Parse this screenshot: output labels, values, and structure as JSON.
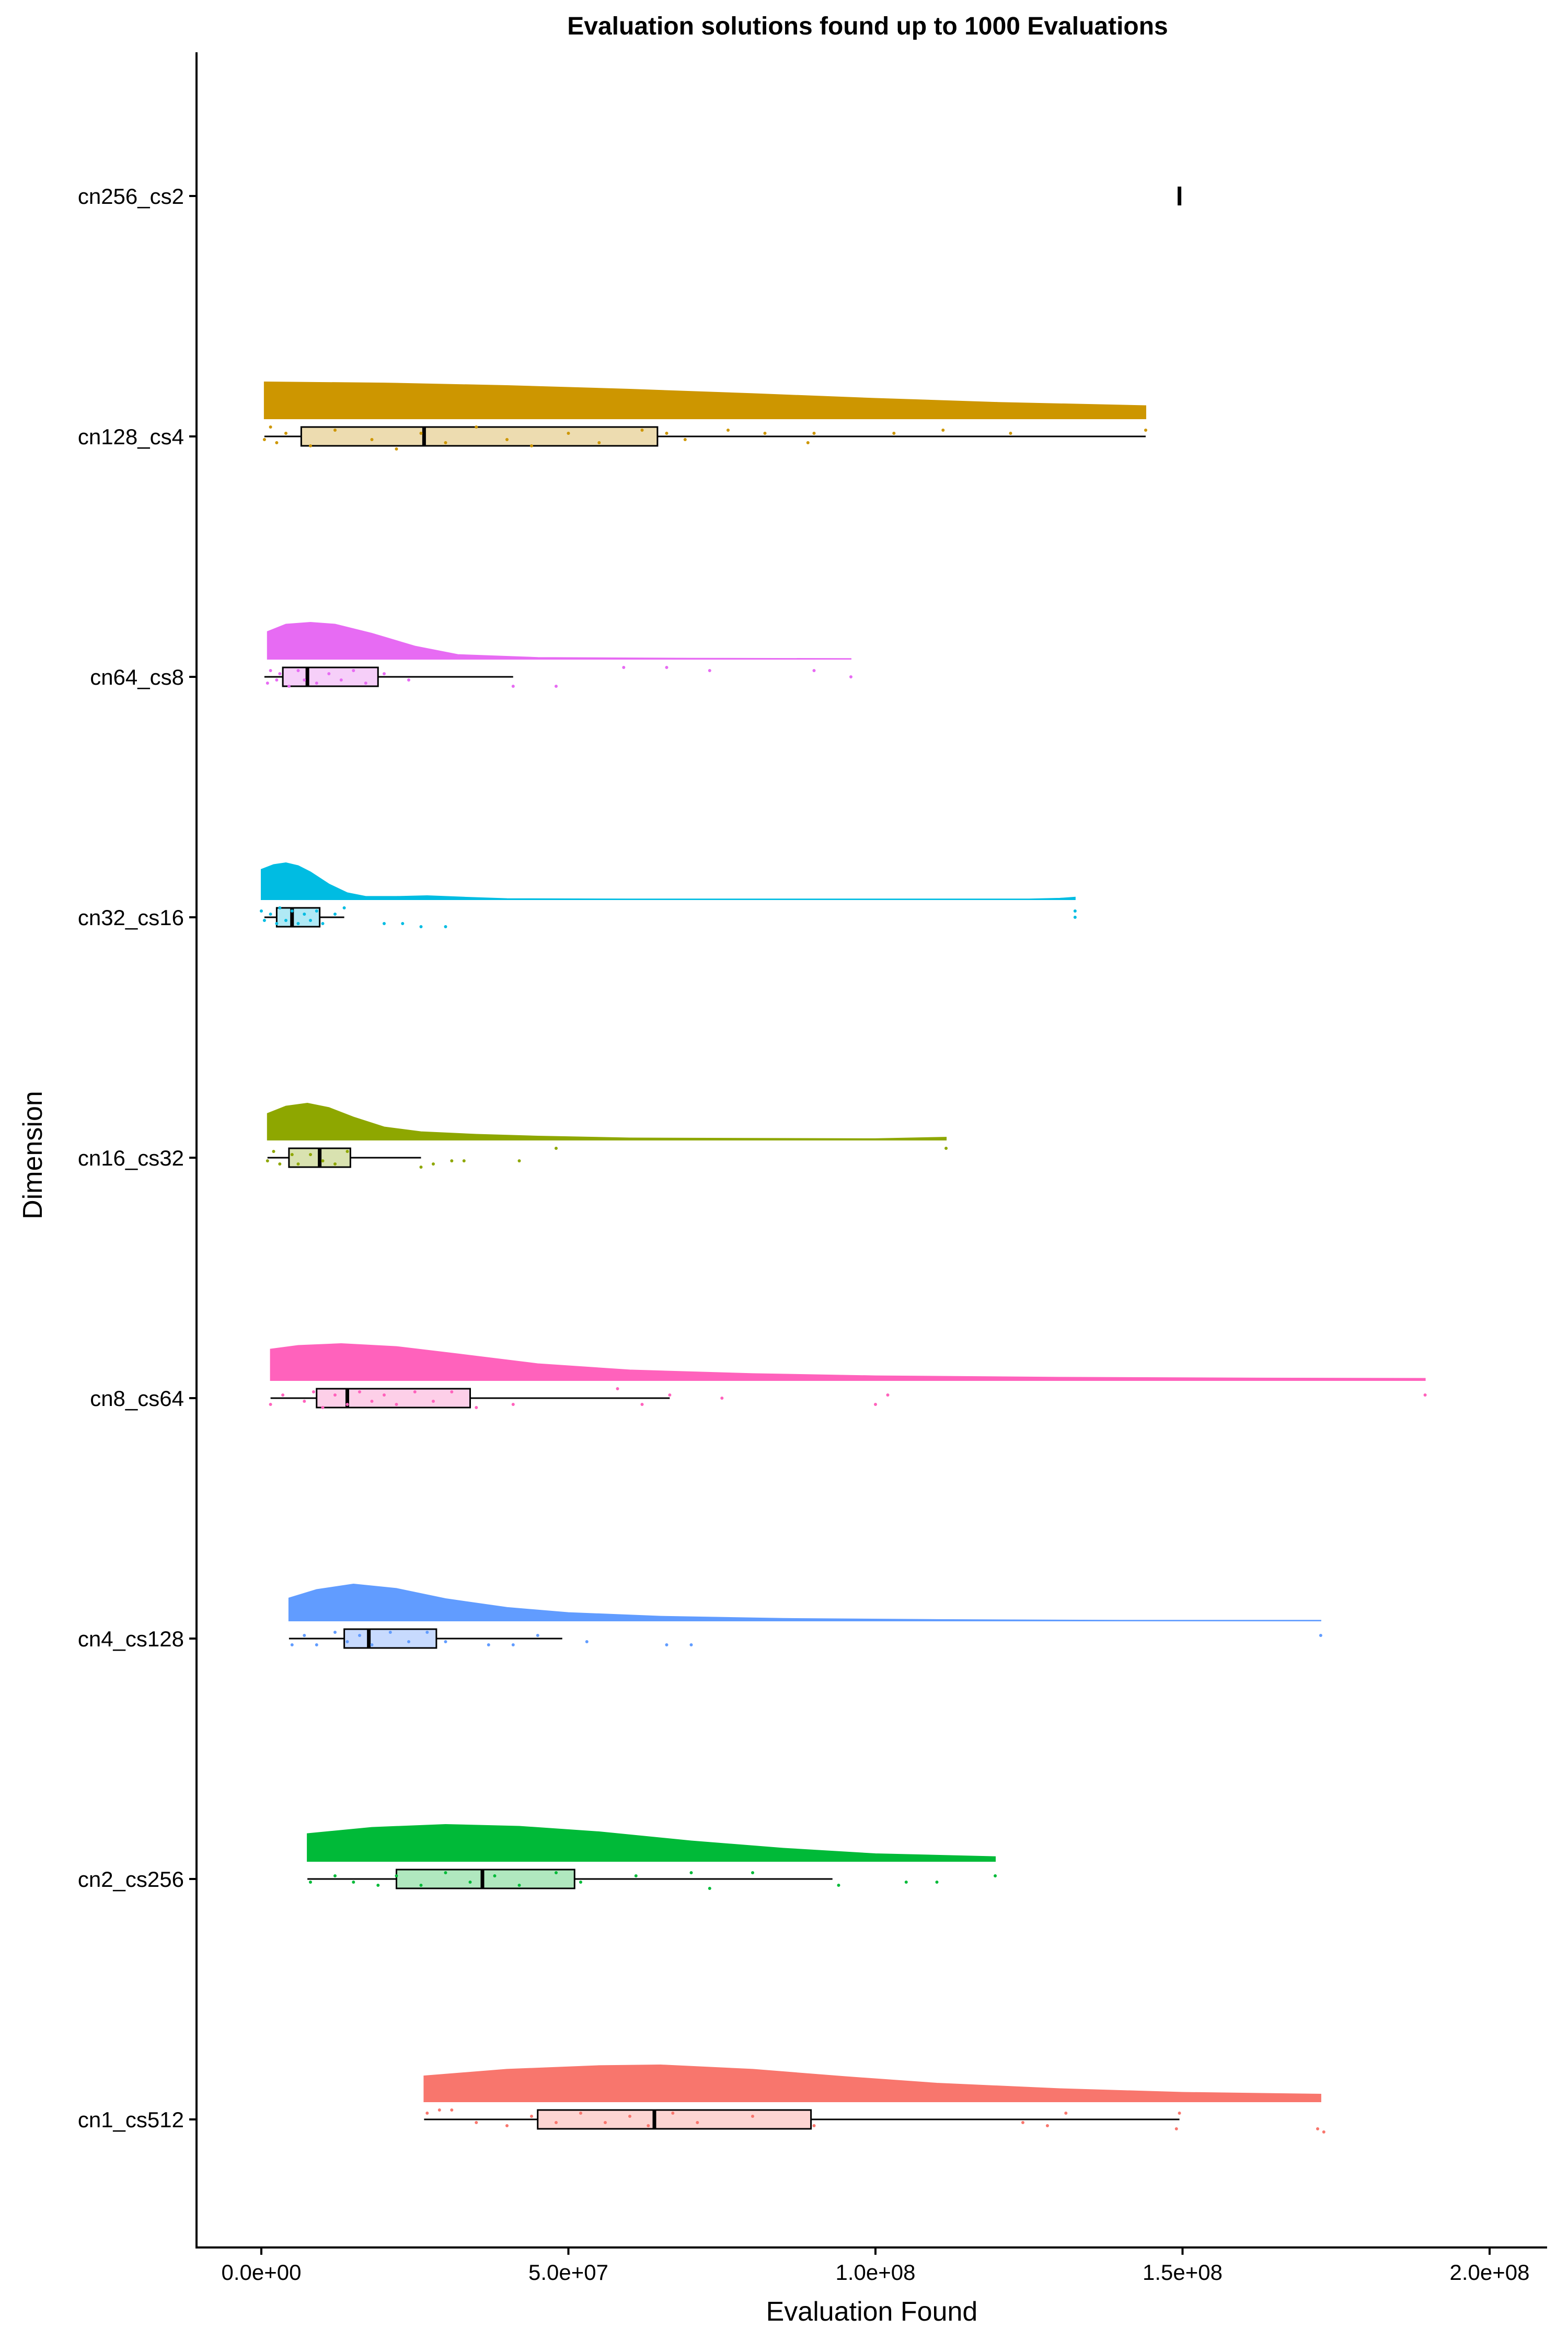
{
  "chart_data": {
    "type": "raincloud",
    "title": "Evaluation solutions found up to 1000 Evaluations",
    "xlabel": "Evaluation Found",
    "ylabel": "Dimension",
    "xlim": [
      -10500000,
      200000000
    ],
    "x_ticks": [
      {
        "value": 0,
        "label": "0.0e+00"
      },
      {
        "value": 50000000,
        "label": "5.0e+07"
      },
      {
        "value": 100000000,
        "label": "1.0e+08"
      },
      {
        "value": 150000000,
        "label": "1.5e+08"
      },
      {
        "value": 200000000,
        "label": "2.0e+08"
      }
    ],
    "grid": false,
    "legend": "none",
    "series": [
      {
        "name": "cn256_cs2",
        "color": "#000000",
        "fill": "#000000",
        "box": {
          "min": 149500000,
          "q1": 149500000,
          "median": 149500000,
          "q3": 149500000,
          "max": 149500000
        },
        "density": [],
        "points": []
      },
      {
        "name": "cn128_cs4",
        "color": "#CD9600",
        "fill": "#EDDCB0",
        "box": {
          "min": 500000,
          "q1": 6500000,
          "median": 26500000,
          "q3": 64500000,
          "max": 144000000
        },
        "density": [
          [
            500000,
            1.0
          ],
          [
            20000000,
            0.97
          ],
          [
            40000000,
            0.9
          ],
          [
            60000000,
            0.8
          ],
          [
            80000000,
            0.68
          ],
          [
            100000000,
            0.55
          ],
          [
            120000000,
            0.44
          ],
          [
            144000000,
            0.35
          ]
        ],
        "points": [
          [
            500000,
            1
          ],
          [
            1500000,
            -3
          ],
          [
            2500000,
            2
          ],
          [
            4000000,
            -1
          ],
          [
            8000000,
            3
          ],
          [
            12000000,
            -2
          ],
          [
            18000000,
            1
          ],
          [
            22000000,
            4
          ],
          [
            26000000,
            -1
          ],
          [
            30000000,
            2
          ],
          [
            35000000,
            -3
          ],
          [
            40000000,
            1
          ],
          [
            44000000,
            3
          ],
          [
            50000000,
            -1
          ],
          [
            55000000,
            2
          ],
          [
            62000000,
            -2
          ],
          [
            66000000,
            -1
          ],
          [
            69000000,
            1
          ],
          [
            76000000,
            -2
          ],
          [
            82000000,
            -1
          ],
          [
            89000000,
            2
          ],
          [
            90000000,
            -1
          ],
          [
            103000000,
            -1
          ],
          [
            111000000,
            -2
          ],
          [
            122000000,
            -1
          ],
          [
            144000000,
            -2
          ]
        ]
      },
      {
        "name": "cn64_cs8",
        "color": "#E76BF3",
        "fill": "#F6CFF9",
        "box": {
          "min": 500000,
          "q1": 3500000,
          "median": 7500000,
          "q3": 19000000,
          "max": 41000000
        },
        "density": [
          [
            1000000,
            0.75
          ],
          [
            4000000,
            0.95
          ],
          [
            8000000,
            1.0
          ],
          [
            12000000,
            0.95
          ],
          [
            18000000,
            0.7
          ],
          [
            25000000,
            0.35
          ],
          [
            32000000,
            0.12
          ],
          [
            45000000,
            0.04
          ],
          [
            70000000,
            0.02
          ],
          [
            96000000,
            0.01
          ]
        ],
        "points": [
          [
            1000000,
            2
          ],
          [
            1500000,
            -2
          ],
          [
            2500000,
            1
          ],
          [
            3000000,
            -1
          ],
          [
            4500000,
            3
          ],
          [
            6000000,
            -2
          ],
          [
            7000000,
            1
          ],
          [
            9000000,
            2
          ],
          [
            11000000,
            -1
          ],
          [
            13000000,
            1
          ],
          [
            15000000,
            -2
          ],
          [
            17000000,
            2
          ],
          [
            20000000,
            -1
          ],
          [
            24000000,
            1
          ],
          [
            41000000,
            3
          ],
          [
            48000000,
            3
          ],
          [
            59000000,
            -3
          ],
          [
            66000000,
            -3
          ],
          [
            73000000,
            -2
          ],
          [
            90000000,
            -2
          ],
          [
            96000000,
            0
          ]
        ]
      },
      {
        "name": "cn32_cs16",
        "color": "#00BCE2",
        "fill": "#B0E9F5",
        "box": {
          "min": 500000,
          "q1": 2500000,
          "median": 5000000,
          "q3": 9500000,
          "max": 13500000
        },
        "density": [
          [
            0,
            0.82
          ],
          [
            2000000,
            0.95
          ],
          [
            4000000,
            1.0
          ],
          [
            6000000,
            0.92
          ],
          [
            8000000,
            0.75
          ],
          [
            11000000,
            0.42
          ],
          [
            14000000,
            0.18
          ],
          [
            17000000,
            0.08
          ],
          [
            22000000,
            0.08
          ],
          [
            27000000,
            0.1
          ],
          [
            33000000,
            0.06
          ],
          [
            40000000,
            0.02
          ],
          [
            60000000,
            0.01
          ],
          [
            100000000,
            0.01
          ],
          [
            125000000,
            0.01
          ],
          [
            130000000,
            0.03
          ],
          [
            132500000,
            0.06
          ]
        ],
        "points": [
          [
            0,
            -2
          ],
          [
            500000,
            1
          ],
          [
            1500000,
            -1
          ],
          [
            2500000,
            2
          ],
          [
            3000000,
            -3
          ],
          [
            4000000,
            1
          ],
          [
            5000000,
            -2
          ],
          [
            6000000,
            2
          ],
          [
            7000000,
            -1
          ],
          [
            8000000,
            1
          ],
          [
            9000000,
            -2
          ],
          [
            10000000,
            2
          ],
          [
            12000000,
            -1
          ],
          [
            13500000,
            -3
          ],
          [
            20000000,
            2
          ],
          [
            23000000,
            2
          ],
          [
            26000000,
            3
          ],
          [
            30000000,
            3
          ],
          [
            132500000,
            0
          ],
          [
            132500000,
            -2
          ]
        ]
      },
      {
        "name": "cn16_cs32",
        "color": "#8EA700",
        "fill": "#D9E2B0",
        "box": {
          "min": 1000000,
          "q1": 4500000,
          "median": 9500000,
          "q3": 14500000,
          "max": 26000000
        },
        "density": [
          [
            1000000,
            0.72
          ],
          [
            4000000,
            0.92
          ],
          [
            7500000,
            1.0
          ],
          [
            11000000,
            0.88
          ],
          [
            15000000,
            0.62
          ],
          [
            20000000,
            0.35
          ],
          [
            26000000,
            0.22
          ],
          [
            35000000,
            0.15
          ],
          [
            45000000,
            0.1
          ],
          [
            60000000,
            0.05
          ],
          [
            80000000,
            0.04
          ],
          [
            100000000,
            0.03
          ],
          [
            111500000,
            0.07
          ]
        ],
        "points": [
          [
            1000000,
            1
          ],
          [
            2000000,
            -2
          ],
          [
            3000000,
            2
          ],
          [
            5000000,
            -1
          ],
          [
            6000000,
            2
          ],
          [
            8000000,
            -1
          ],
          [
            10000000,
            1
          ],
          [
            12000000,
            2
          ],
          [
            14000000,
            -2
          ],
          [
            26000000,
            3
          ],
          [
            28000000,
            2
          ],
          [
            31000000,
            1
          ],
          [
            33000000,
            1
          ],
          [
            42000000,
            1
          ],
          [
            48000000,
            -3
          ],
          [
            111500000,
            -3
          ]
        ]
      },
      {
        "name": "cn8_cs64",
        "color": "#FF62BC",
        "fill": "#FDCFE8",
        "box": {
          "min": 1500000,
          "q1": 9000000,
          "median": 14000000,
          "q3": 34000000,
          "max": 66500000
        },
        "density": [
          [
            1500000,
            0.85
          ],
          [
            6000000,
            0.95
          ],
          [
            13000000,
            1.0
          ],
          [
            22000000,
            0.92
          ],
          [
            32000000,
            0.72
          ],
          [
            45000000,
            0.45
          ],
          [
            60000000,
            0.28
          ],
          [
            80000000,
            0.18
          ],
          [
            100000000,
            0.12
          ],
          [
            130000000,
            0.08
          ],
          [
            160000000,
            0.06
          ],
          [
            189500000,
            0.05
          ]
        ],
        "points": [
          [
            1500000,
            2
          ],
          [
            3500000,
            -1
          ],
          [
            7000000,
            1
          ],
          [
            8500000,
            -2
          ],
          [
            10000000,
            3
          ],
          [
            12000000,
            -1
          ],
          [
            14000000,
            2
          ],
          [
            16000000,
            -2
          ],
          [
            18000000,
            1
          ],
          [
            20000000,
            -1
          ],
          [
            22000000,
            2
          ],
          [
            25000000,
            -2
          ],
          [
            28000000,
            1
          ],
          [
            31000000,
            -2
          ],
          [
            35000000,
            3
          ],
          [
            41000000,
            2
          ],
          [
            58000000,
            -3
          ],
          [
            62000000,
            2
          ],
          [
            66500000,
            -1
          ],
          [
            75000000,
            0
          ],
          [
            100000000,
            2
          ],
          [
            102000000,
            -1
          ],
          [
            189500000,
            -1
          ]
        ]
      },
      {
        "name": "cn4_cs128",
        "color": "#619CFF",
        "fill": "#C7DAFE",
        "box": {
          "min": 4500000,
          "q1": 13500000,
          "median": 17500000,
          "q3": 28500000,
          "max": 49000000
        },
        "density": [
          [
            4500000,
            0.62
          ],
          [
            9000000,
            0.85
          ],
          [
            15000000,
            1.0
          ],
          [
            22000000,
            0.88
          ],
          [
            30000000,
            0.6
          ],
          [
            40000000,
            0.36
          ],
          [
            50000000,
            0.22
          ],
          [
            65000000,
            0.12
          ],
          [
            85000000,
            0.06
          ],
          [
            110000000,
            0.03
          ],
          [
            140000000,
            0.01
          ],
          [
            172500000,
            0.01
          ]
        ],
        "points": [
          [
            5000000,
            2
          ],
          [
            7000000,
            -1
          ],
          [
            9000000,
            2
          ],
          [
            12000000,
            -2
          ],
          [
            14000000,
            1
          ],
          [
            16000000,
            -1
          ],
          [
            18000000,
            2
          ],
          [
            21000000,
            -2
          ],
          [
            24000000,
            1
          ],
          [
            27000000,
            -2
          ],
          [
            30000000,
            1
          ],
          [
            37000000,
            2
          ],
          [
            41000000,
            2
          ],
          [
            45000000,
            -1
          ],
          [
            53000000,
            1
          ],
          [
            66000000,
            2
          ],
          [
            70000000,
            2
          ],
          [
            172500000,
            -1
          ]
        ]
      },
      {
        "name": "cn2_cs256",
        "color": "#00BA38",
        "fill": "#B0E8BF",
        "box": {
          "min": 7500000,
          "q1": 22000000,
          "median": 36000000,
          "q3": 51000000,
          "max": 93000000
        },
        "density": [
          [
            7500000,
            0.75
          ],
          [
            18000000,
            0.92
          ],
          [
            30000000,
            1.0
          ],
          [
            42000000,
            0.95
          ],
          [
            55000000,
            0.8
          ],
          [
            70000000,
            0.55
          ],
          [
            85000000,
            0.35
          ],
          [
            100000000,
            0.2
          ],
          [
            119500000,
            0.12
          ]
        ],
        "points": [
          [
            8000000,
            1
          ],
          [
            12000000,
            -1
          ],
          [
            15000000,
            1
          ],
          [
            19000000,
            2
          ],
          [
            22000000,
            -1
          ],
          [
            26000000,
            2
          ],
          [
            30000000,
            -2
          ],
          [
            34000000,
            1
          ],
          [
            38000000,
            -1
          ],
          [
            42000000,
            2
          ],
          [
            48000000,
            -2
          ],
          [
            52000000,
            1
          ],
          [
            61000000,
            -1
          ],
          [
            70000000,
            -2
          ],
          [
            73000000,
            3
          ],
          [
            80000000,
            -2
          ],
          [
            94000000,
            2
          ],
          [
            105000000,
            1
          ],
          [
            110000000,
            1
          ],
          [
            119500000,
            -1
          ]
        ]
      },
      {
        "name": "cn1_cs512",
        "color": "#F8766D",
        "fill": "#FDD5D2",
        "box": {
          "min": 26500000,
          "q1": 45000000,
          "median": 64000000,
          "q3": 89500000,
          "max": 149500000
        },
        "density": [
          [
            26500000,
            0.7
          ],
          [
            40000000,
            0.88
          ],
          [
            55000000,
            0.98
          ],
          [
            65000000,
            1.0
          ],
          [
            80000000,
            0.88
          ],
          [
            95000000,
            0.68
          ],
          [
            110000000,
            0.5
          ],
          [
            130000000,
            0.35
          ],
          [
            150000000,
            0.25
          ],
          [
            172500000,
            0.2
          ]
        ],
        "points": [
          [
            27000000,
            -2
          ],
          [
            29000000,
            -3
          ],
          [
            31000000,
            -3
          ],
          [
            35000000,
            1
          ],
          [
            40000000,
            2
          ],
          [
            44000000,
            -1
          ],
          [
            48000000,
            1
          ],
          [
            52000000,
            -2
          ],
          [
            56000000,
            1
          ],
          [
            60000000,
            -1
          ],
          [
            63000000,
            2
          ],
          [
            67000000,
            -2
          ],
          [
            71000000,
            1
          ],
          [
            80000000,
            -1
          ],
          [
            90000000,
            2
          ],
          [
            124000000,
            1
          ],
          [
            128000000,
            2
          ],
          [
            131000000,
            -2
          ],
          [
            149000000,
            3
          ],
          [
            149500000,
            -2
          ],
          [
            172000000,
            3
          ],
          [
            173000000,
            4
          ]
        ]
      }
    ]
  }
}
